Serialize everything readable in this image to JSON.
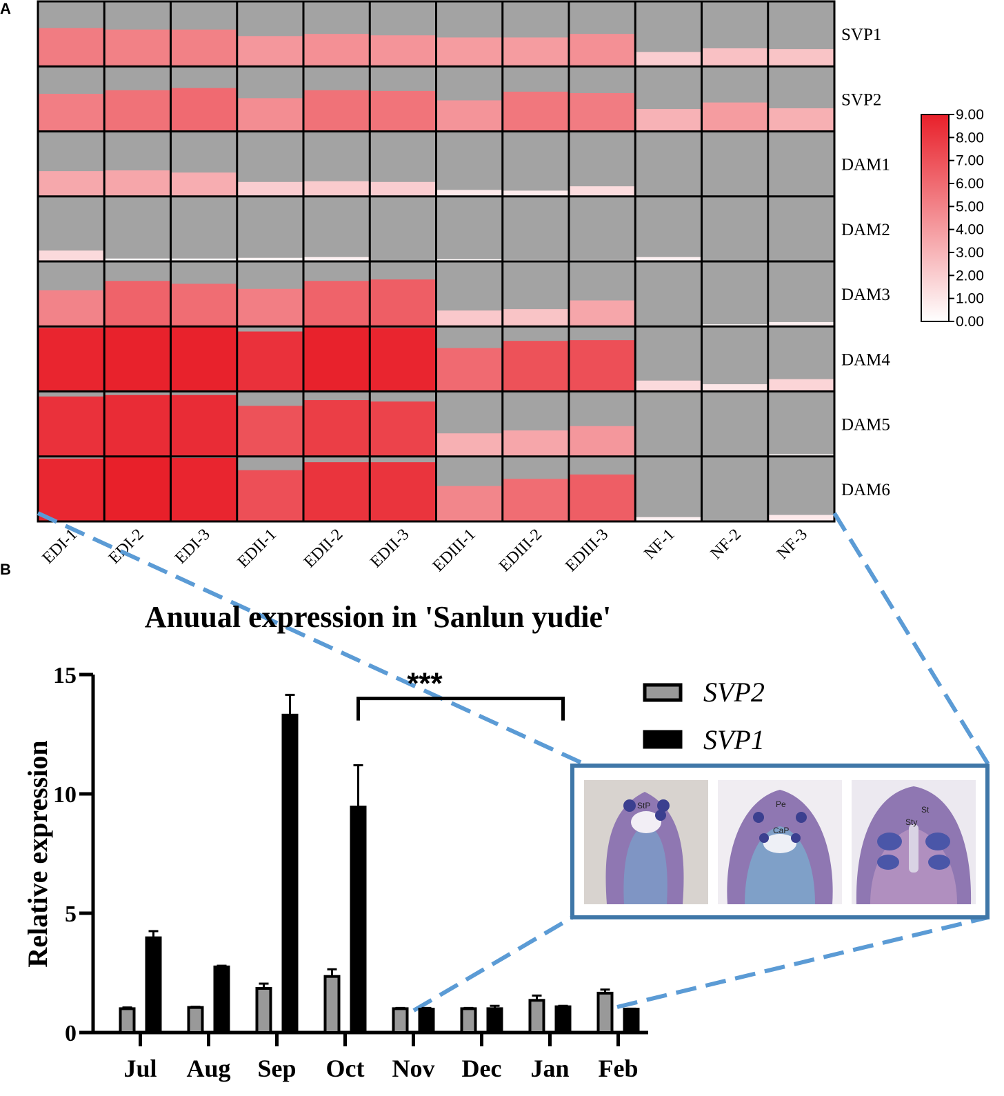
{
  "panels": {
    "a_label": "A",
    "b_label": "B"
  },
  "colors": {
    "heat_low": "#ffffff",
    "heat_high": "#e8202a",
    "cell_gray": "#a3a3a3",
    "svp2_bar": "#999999",
    "svp1_bar": "#000000",
    "zoom_line": "#5b9bd5",
    "inset_frame": "#3f77a8"
  },
  "chart_data": [
    {
      "type": "heatmap",
      "title": "",
      "rows": [
        "SVP1",
        "SVP2",
        "DAM1",
        "DAM2",
        "DAM3",
        "DAM4",
        "DAM5",
        "DAM6"
      ],
      "columns": [
        "EDI-1",
        "EDI-2",
        "EDI-3",
        "EDII-1",
        "EDII-2",
        "EDII-3",
        "EDIII-1",
        "EDIII-2",
        "EDIII-3",
        "NF-1",
        "NF-2",
        "NF-3"
      ],
      "values": [
        [
          5.3,
          5.1,
          5.1,
          4.2,
          4.5,
          4.3,
          4.0,
          4.0,
          4.5,
          2.0,
          2.5,
          2.4
        ],
        [
          5.2,
          5.7,
          6.0,
          4.6,
          5.7,
          5.6,
          4.3,
          5.5,
          5.3,
          3.1,
          4.0,
          3.2
        ],
        [
          3.5,
          3.6,
          3.3,
          2.0,
          2.1,
          2.0,
          0.9,
          0.8,
          1.4,
          0.0,
          0.0,
          0.1
        ],
        [
          1.5,
          0.4,
          0.4,
          0.5,
          0.6,
          0.1,
          0.3,
          0.2,
          0.2,
          0.6,
          0.0,
          0.0
        ],
        [
          5.0,
          6.3,
          5.9,
          5.2,
          6.3,
          6.5,
          2.2,
          2.4,
          3.6,
          0.1,
          0.3,
          0.6
        ],
        [
          8.8,
          8.9,
          8.9,
          8.3,
          8.9,
          8.8,
          6.0,
          7.0,
          7.1,
          1.5,
          1.0,
          1.7
        ],
        [
          8.3,
          8.5,
          8.5,
          7.0,
          7.8,
          7.6,
          3.2,
          3.6,
          4.2,
          0.0,
          0.0,
          0.3
        ],
        [
          8.7,
          9.0,
          8.8,
          7.1,
          8.2,
          8.2,
          4.9,
          5.9,
          6.5,
          0.6,
          0.0,
          0.9
        ]
      ],
      "colorbar": {
        "min": 0,
        "max": 9,
        "ticks": [
          "0.00",
          "1.00",
          "2.00",
          "3.00",
          "4.00",
          "5.00",
          "6.00",
          "7.00",
          "8.00",
          "9.00"
        ]
      }
    },
    {
      "type": "bar",
      "title": "Anuual expression in 'Sanlun yudie'",
      "xlabel": "",
      "ylabel": "Relative expression",
      "ylim": [
        0,
        15
      ],
      "yticks": [
        "0",
        "5",
        "10",
        "15"
      ],
      "categories": [
        "Jul",
        "Aug",
        "Sep",
        "Oct",
        "Nov",
        "Dec",
        "Jan",
        "Feb"
      ],
      "series": [
        {
          "name": "SVP2",
          "values": [
            1.0,
            1.05,
            1.85,
            2.35,
            1.0,
            1.0,
            1.35,
            1.65
          ],
          "errors": [
            0.05,
            0.03,
            0.2,
            0.3,
            0.03,
            0.03,
            0.2,
            0.15
          ]
        },
        {
          "name": "SVP1",
          "values": [
            3.97,
            2.75,
            13.3,
            9.45,
            0.98,
            1.0,
            1.08,
            0.98
          ],
          "errors": [
            0.28,
            0.05,
            0.85,
            1.75,
            0.05,
            0.12,
            0.04,
            0.02
          ]
        }
      ],
      "legend_position": "top-right",
      "significance": {
        "label": "***",
        "from": "Oct",
        "to": "Jan"
      }
    }
  ],
  "inset": {
    "images": [
      {
        "labels": [
          "StP"
        ]
      },
      {
        "labels": [
          "Pe",
          "CaP"
        ]
      },
      {
        "labels": [
          "St",
          "Sty"
        ]
      }
    ]
  }
}
